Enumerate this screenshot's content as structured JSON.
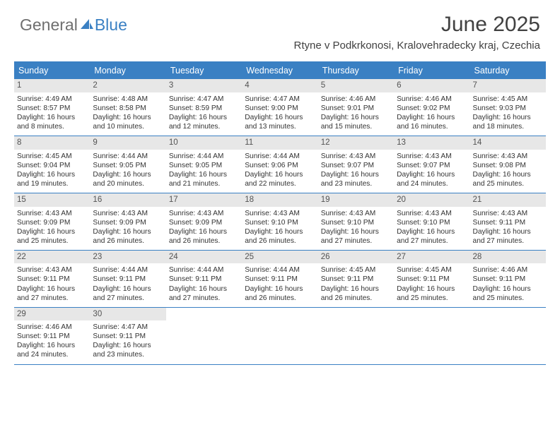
{
  "brand": {
    "part1": "General",
    "part2": "Blue"
  },
  "title": "June 2025",
  "location": "Rtyne v Podkrkonosi, Kralovehradecky kraj, Czechia",
  "colors": {
    "accent": "#3a80c3",
    "header_text": "#414141",
    "logo_gray": "#6f6f6f",
    "daynum_bg": "#e7e7e7",
    "body_text": "#333333"
  },
  "dow": [
    "Sunday",
    "Monday",
    "Tuesday",
    "Wednesday",
    "Thursday",
    "Friday",
    "Saturday"
  ],
  "weeks": [
    [
      {
        "n": "1",
        "sr": "4:49 AM",
        "ss": "8:57 PM",
        "dl": "16 hours and 8 minutes."
      },
      {
        "n": "2",
        "sr": "4:48 AM",
        "ss": "8:58 PM",
        "dl": "16 hours and 10 minutes."
      },
      {
        "n": "3",
        "sr": "4:47 AM",
        "ss": "8:59 PM",
        "dl": "16 hours and 12 minutes."
      },
      {
        "n": "4",
        "sr": "4:47 AM",
        "ss": "9:00 PM",
        "dl": "16 hours and 13 minutes."
      },
      {
        "n": "5",
        "sr": "4:46 AM",
        "ss": "9:01 PM",
        "dl": "16 hours and 15 minutes."
      },
      {
        "n": "6",
        "sr": "4:46 AM",
        "ss": "9:02 PM",
        "dl": "16 hours and 16 minutes."
      },
      {
        "n": "7",
        "sr": "4:45 AM",
        "ss": "9:03 PM",
        "dl": "16 hours and 18 minutes."
      }
    ],
    [
      {
        "n": "8",
        "sr": "4:45 AM",
        "ss": "9:04 PM",
        "dl": "16 hours and 19 minutes."
      },
      {
        "n": "9",
        "sr": "4:44 AM",
        "ss": "9:05 PM",
        "dl": "16 hours and 20 minutes."
      },
      {
        "n": "10",
        "sr": "4:44 AM",
        "ss": "9:05 PM",
        "dl": "16 hours and 21 minutes."
      },
      {
        "n": "11",
        "sr": "4:44 AM",
        "ss": "9:06 PM",
        "dl": "16 hours and 22 minutes."
      },
      {
        "n": "12",
        "sr": "4:43 AM",
        "ss": "9:07 PM",
        "dl": "16 hours and 23 minutes."
      },
      {
        "n": "13",
        "sr": "4:43 AM",
        "ss": "9:07 PM",
        "dl": "16 hours and 24 minutes."
      },
      {
        "n": "14",
        "sr": "4:43 AM",
        "ss": "9:08 PM",
        "dl": "16 hours and 25 minutes."
      }
    ],
    [
      {
        "n": "15",
        "sr": "4:43 AM",
        "ss": "9:09 PM",
        "dl": "16 hours and 25 minutes."
      },
      {
        "n": "16",
        "sr": "4:43 AM",
        "ss": "9:09 PM",
        "dl": "16 hours and 26 minutes."
      },
      {
        "n": "17",
        "sr": "4:43 AM",
        "ss": "9:09 PM",
        "dl": "16 hours and 26 minutes."
      },
      {
        "n": "18",
        "sr": "4:43 AM",
        "ss": "9:10 PM",
        "dl": "16 hours and 26 minutes."
      },
      {
        "n": "19",
        "sr": "4:43 AM",
        "ss": "9:10 PM",
        "dl": "16 hours and 27 minutes."
      },
      {
        "n": "20",
        "sr": "4:43 AM",
        "ss": "9:10 PM",
        "dl": "16 hours and 27 minutes."
      },
      {
        "n": "21",
        "sr": "4:43 AM",
        "ss": "9:11 PM",
        "dl": "16 hours and 27 minutes."
      }
    ],
    [
      {
        "n": "22",
        "sr": "4:43 AM",
        "ss": "9:11 PM",
        "dl": "16 hours and 27 minutes."
      },
      {
        "n": "23",
        "sr": "4:44 AM",
        "ss": "9:11 PM",
        "dl": "16 hours and 27 minutes."
      },
      {
        "n": "24",
        "sr": "4:44 AM",
        "ss": "9:11 PM",
        "dl": "16 hours and 27 minutes."
      },
      {
        "n": "25",
        "sr": "4:44 AM",
        "ss": "9:11 PM",
        "dl": "16 hours and 26 minutes."
      },
      {
        "n": "26",
        "sr": "4:45 AM",
        "ss": "9:11 PM",
        "dl": "16 hours and 26 minutes."
      },
      {
        "n": "27",
        "sr": "4:45 AM",
        "ss": "9:11 PM",
        "dl": "16 hours and 25 minutes."
      },
      {
        "n": "28",
        "sr": "4:46 AM",
        "ss": "9:11 PM",
        "dl": "16 hours and 25 minutes."
      }
    ],
    [
      {
        "n": "29",
        "sr": "4:46 AM",
        "ss": "9:11 PM",
        "dl": "16 hours and 24 minutes."
      },
      {
        "n": "30",
        "sr": "4:47 AM",
        "ss": "9:11 PM",
        "dl": "16 hours and 23 minutes."
      },
      null,
      null,
      null,
      null,
      null
    ]
  ],
  "labels": {
    "sunrise": "Sunrise:",
    "sunset": "Sunset:",
    "daylight": "Daylight:"
  }
}
